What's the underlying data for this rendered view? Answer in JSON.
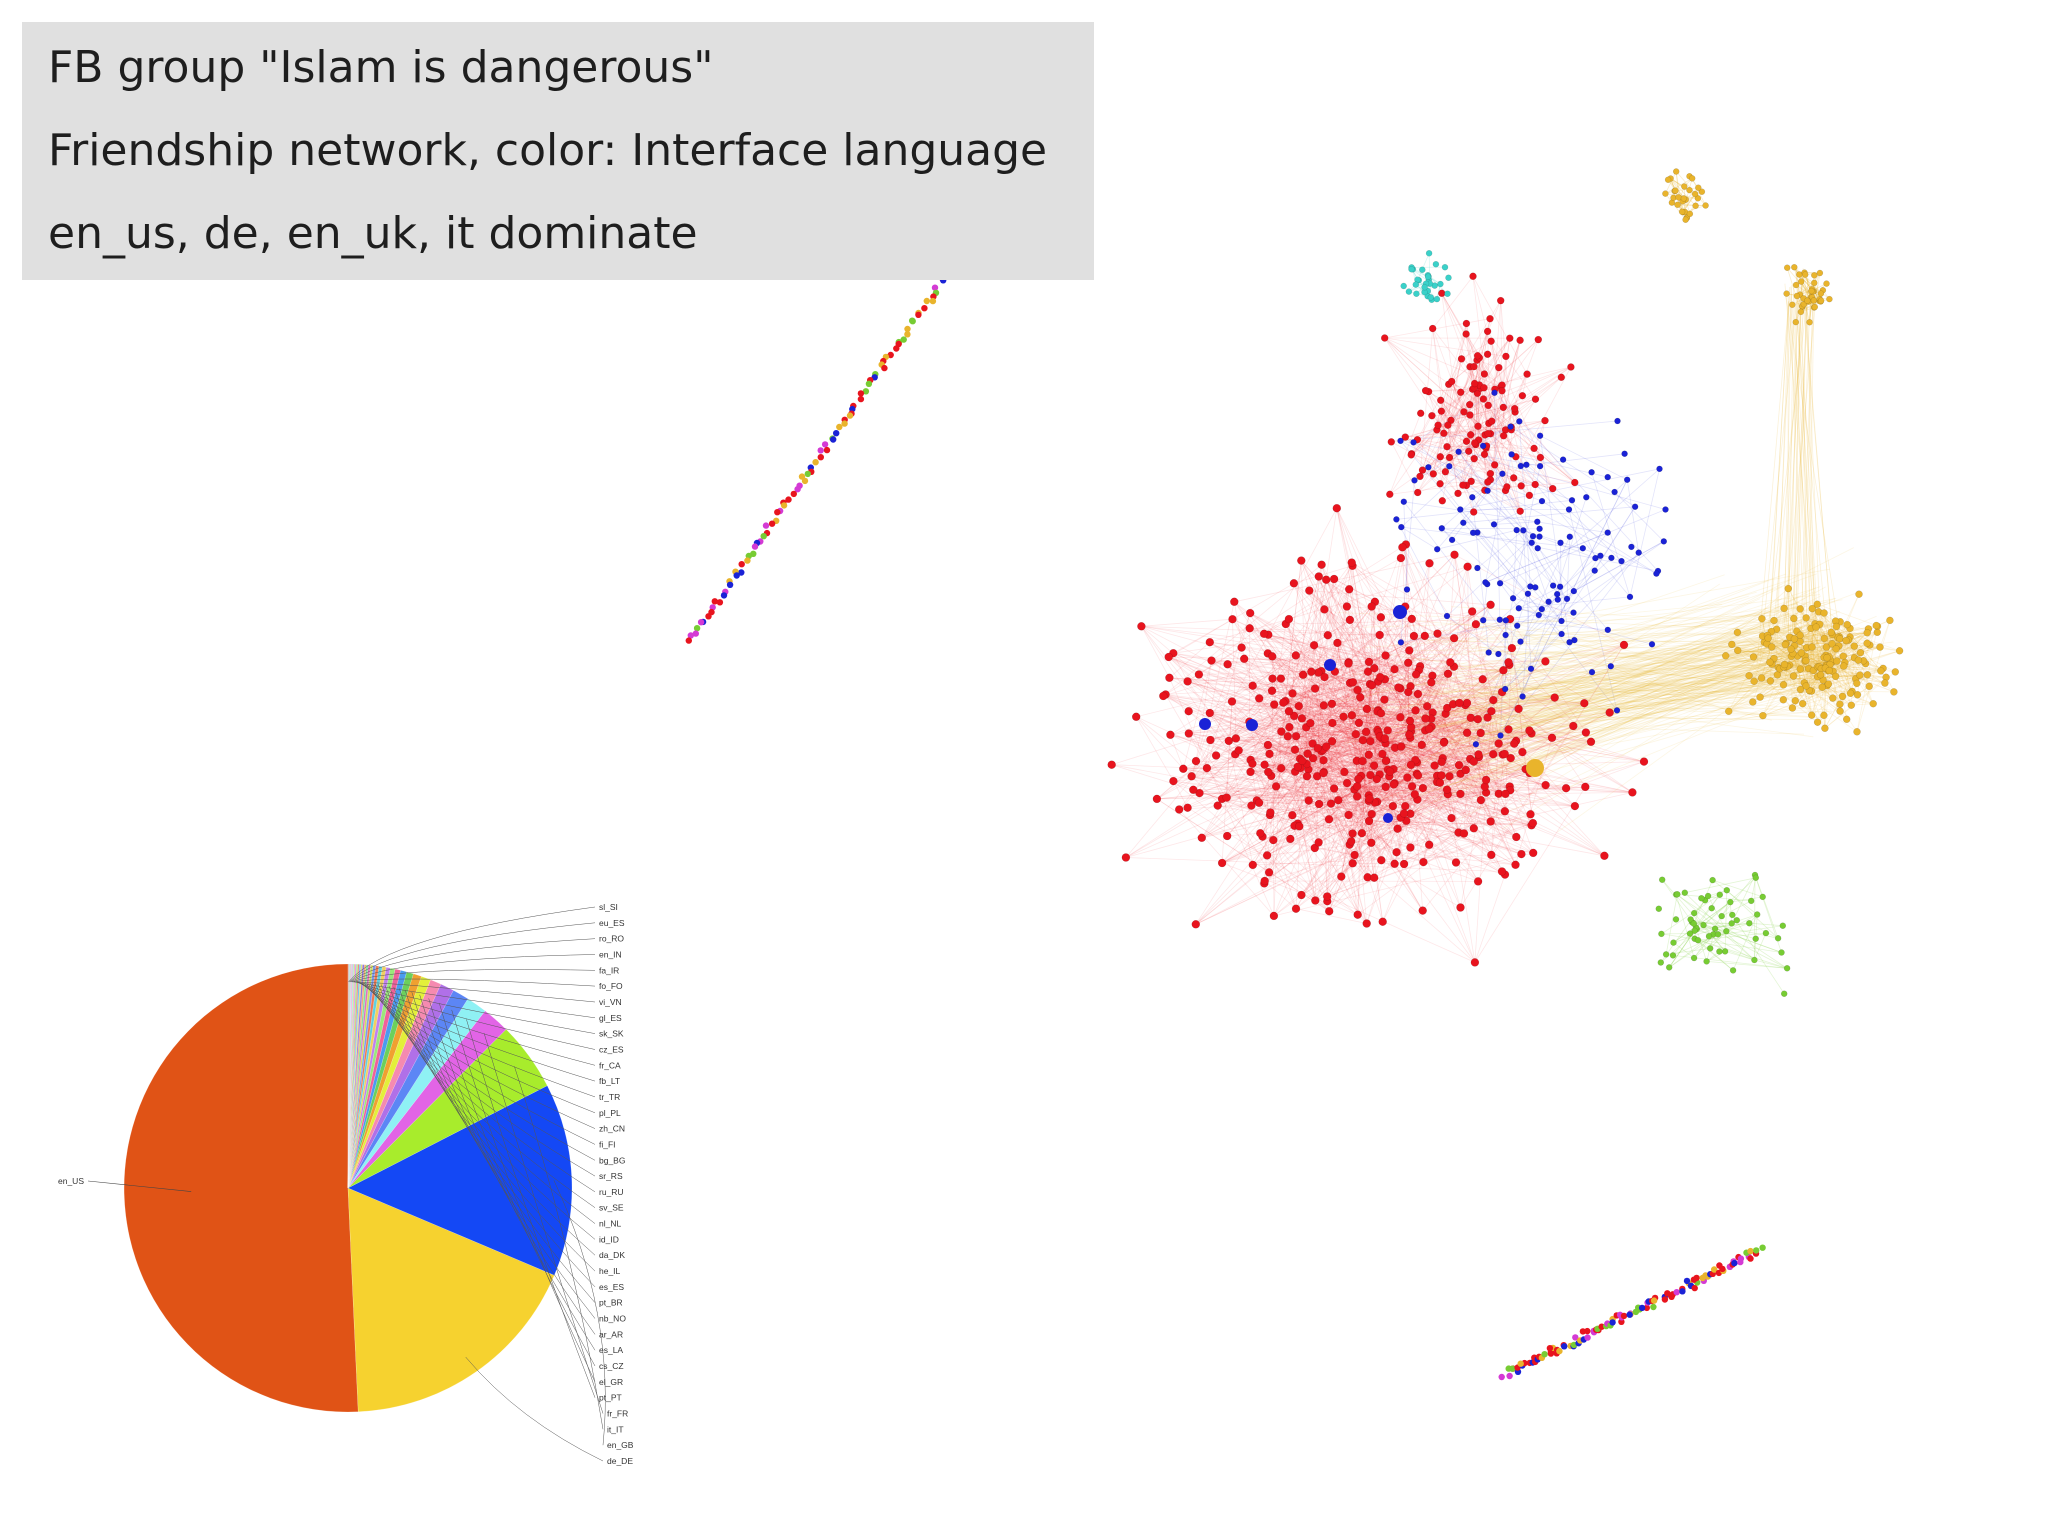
{
  "caption": {
    "line1": "FB group \"Islam is dangerous\"",
    "line2": "Friendship network, color: Interface language",
    "line3": "en_us, de, en_uk, it dominate"
  },
  "colors": {
    "background": "#ffffff",
    "caption_box": "#e0e0e0",
    "red_cluster": "#e8141e",
    "blue_nodes": "#1a22d6",
    "gold_cluster": "#e9b42c",
    "green_nodes": "#77cc33",
    "cyan_nodes": "#3ad1c9",
    "magenta_nodes": "#d43ad4"
  },
  "chart_data": [
    {
      "type": "network",
      "title": "",
      "legend": "none",
      "clusters": [
        {
          "color": "#e8141e"
        },
        {
          "color": "#e9b42c"
        },
        {
          "color": "#1a22d6"
        },
        {
          "color": "#77cc33"
        },
        {
          "color": "#3ad1c9"
        },
        {
          "color": "#d43ad4"
        }
      ]
    },
    {
      "type": "pie",
      "title": "",
      "label_side": "right",
      "slices": [
        {
          "label": "en_US",
          "value": 51.0,
          "color": "#e05316"
        },
        {
          "label": "de_DE",
          "value": 18.0,
          "color": "#f6d22f"
        },
        {
          "label": "en_GB",
          "value": 14.0,
          "color": "#1448f5"
        },
        {
          "label": "it_IT",
          "value": 5.0,
          "color": "#a8ec2c"
        },
        {
          "label": "fr_FR",
          "value": 2.0,
          "color": "#e264e6"
        },
        {
          "label": "pt_PT",
          "value": 1.5,
          "color": "#8ff1f4"
        },
        {
          "label": "el_GR",
          "value": 1.2,
          "color": "#5c86f5"
        },
        {
          "label": "cs_CZ",
          "value": 1.0,
          "color": "#b070e8"
        },
        {
          "label": "es_LA",
          "value": 0.8,
          "color": "#f58ab0"
        },
        {
          "label": "ar_AR",
          "value": 0.7,
          "color": "#e3ef3a"
        },
        {
          "label": "nb_NO",
          "value": 0.6,
          "color": "#f0a030"
        },
        {
          "label": "pt_BR",
          "value": 0.5,
          "color": "#6cd05c"
        },
        {
          "label": "es_ES",
          "value": 0.45,
          "color": "#4a9bf0"
        },
        {
          "label": "he_IL",
          "value": 0.4,
          "color": "#f0609a"
        },
        {
          "label": "da_DK",
          "value": 0.35,
          "color": "#9ae87a"
        },
        {
          "label": "id_ID",
          "value": 0.3,
          "color": "#c080f0"
        },
        {
          "label": "nl_NL",
          "value": 0.28,
          "color": "#f0d060"
        },
        {
          "label": "sv_SE",
          "value": 0.25,
          "color": "#60d0e0"
        },
        {
          "label": "ru_RU",
          "value": 0.22,
          "color": "#f07a50"
        },
        {
          "label": "sr_RS",
          "value": 0.2,
          "color": "#7a9af0"
        },
        {
          "label": "bg_BG",
          "value": 0.18,
          "color": "#d0e060"
        },
        {
          "label": "fi_FI",
          "value": 0.16,
          "color": "#e070c0"
        },
        {
          "label": "zh_CN",
          "value": 0.15,
          "color": "#80e0a0"
        },
        {
          "label": "pl_PL",
          "value": 0.14,
          "color": "#f0b070"
        },
        {
          "label": "tr_TR",
          "value": 0.13,
          "color": "#9070e0"
        },
        {
          "label": "fb_LT",
          "value": 0.12,
          "color": "#e0e080"
        },
        {
          "label": "fr_CA",
          "value": 0.11,
          "color": "#70c0f0"
        },
        {
          "label": "cz_ES",
          "value": 0.1,
          "color": "#f08080"
        },
        {
          "label": "sk_SK",
          "value": 0.1,
          "color": "#a0f070"
        },
        {
          "label": "gl_ES",
          "value": 0.09,
          "color": "#d090f0"
        },
        {
          "label": "vi_VN",
          "value": 0.09,
          "color": "#f0c090"
        },
        {
          "label": "fo_FO",
          "value": 0.08,
          "color": "#90f0d0"
        },
        {
          "label": "fa_IR",
          "value": 0.08,
          "color": "#f0a0d0"
        },
        {
          "label": "en_IN",
          "value": 0.07,
          "color": "#c0d0f0"
        },
        {
          "label": "ro_RO",
          "value": 0.07,
          "color": "#e0c0a0"
        },
        {
          "label": "eu_ES",
          "value": 0.06,
          "color": "#a0e0e0"
        },
        {
          "label": "sl_SI",
          "value": 0.06,
          "color": "#d0a0a0"
        }
      ]
    }
  ]
}
